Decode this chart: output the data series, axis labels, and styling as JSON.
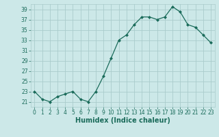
{
  "x": [
    0,
    1,
    2,
    3,
    4,
    5,
    6,
    7,
    8,
    9,
    10,
    11,
    12,
    13,
    14,
    15,
    16,
    17,
    18,
    19,
    20,
    21,
    22,
    23
  ],
  "y": [
    23,
    21.5,
    21,
    22,
    22.5,
    23,
    21.5,
    21,
    23,
    26,
    29.5,
    33,
    34,
    36,
    37.5,
    37.5,
    37,
    37.5,
    39.5,
    38.5,
    36,
    35.5,
    34,
    32.5
  ],
  "line_color": "#1a6b5a",
  "marker": "D",
  "markersize": 2.0,
  "linewidth": 0.9,
  "bg_color": "#cce8e8",
  "grid_color": "#aacccc",
  "xlabel": "Humidex (Indice chaleur)",
  "ylim": [
    20,
    40
  ],
  "yticks": [
    21,
    23,
    25,
    27,
    29,
    31,
    33,
    35,
    37,
    39
  ],
  "xticks": [
    0,
    1,
    2,
    3,
    4,
    5,
    6,
    7,
    8,
    9,
    10,
    11,
    12,
    13,
    14,
    15,
    16,
    17,
    18,
    19,
    20,
    21,
    22,
    23
  ],
  "tick_fontsize": 5.5,
  "xlabel_fontsize": 7.0,
  "tick_color": "#1a6b5a",
  "xlabel_color": "#1a6b5a"
}
